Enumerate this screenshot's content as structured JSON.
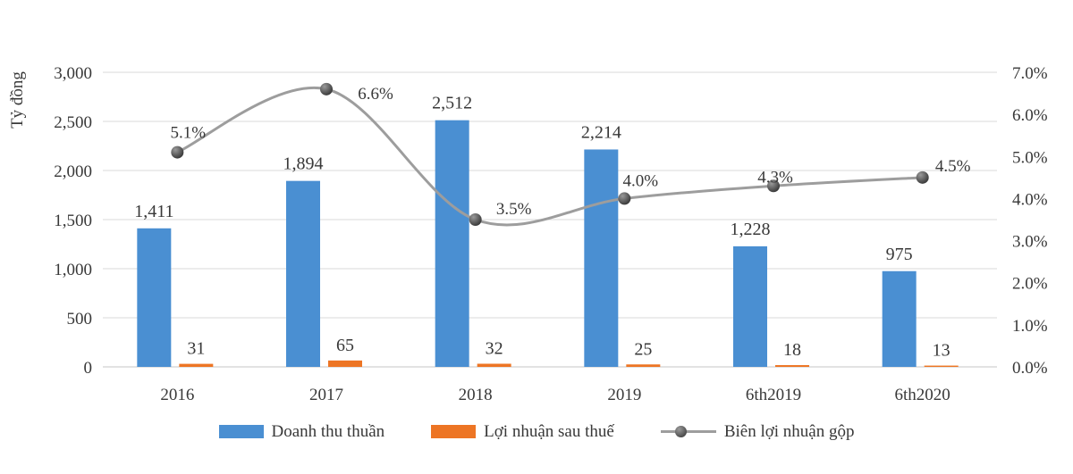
{
  "chart_data": {
    "type": "combo-bar-line",
    "title": "",
    "categories": [
      "2016",
      "2017",
      "2018",
      "2019",
      "6th2019",
      "6th2020"
    ],
    "series": [
      {
        "name": "Doanh thu thuần",
        "type": "bar",
        "axis": "left",
        "color": "#4a8fd2",
        "values": [
          1411,
          1894,
          2512,
          2214,
          1228,
          975
        ],
        "labels": [
          "1,411",
          "1,894",
          "2,512",
          "2,214",
          "1,228",
          "975"
        ]
      },
      {
        "name": "Lợi nhuận sau thuế",
        "type": "bar",
        "axis": "left",
        "color": "#ed7524",
        "values": [
          31,
          65,
          32,
          25,
          18,
          13
        ],
        "labels": [
          "31",
          "65",
          "32",
          "25",
          "18",
          "13"
        ]
      },
      {
        "name": "Biên lợi nhuận gộp",
        "type": "line",
        "axis": "right",
        "color": "#9d9d9d",
        "marker_color": "#3d3d3d",
        "values": [
          5.1,
          6.6,
          3.5,
          4.0,
          4.3,
          4.5
        ],
        "labels": [
          "5.1%",
          "6.6%",
          "3.5%",
          "4.0%",
          "4.3%",
          "4.5%"
        ]
      }
    ],
    "left_axis": {
      "label": "Tỷ đồng",
      "min": 0,
      "max": 3000,
      "step": 500,
      "ticks": [
        "0",
        "500",
        "1,000",
        "1,500",
        "2,000",
        "2,500",
        "3,000"
      ]
    },
    "right_axis": {
      "min": 0,
      "max": 7,
      "step": 1,
      "ticks": [
        "0.0%",
        "1.0%",
        "2.0%",
        "3.0%",
        "4.0%",
        "5.0%",
        "6.0%",
        "7.0%"
      ]
    },
    "grid": true,
    "legend_position": "bottom",
    "colors": {
      "grid": "#d9d9d9",
      "axis_line": "#c6c6c6",
      "text": "#383838"
    }
  }
}
